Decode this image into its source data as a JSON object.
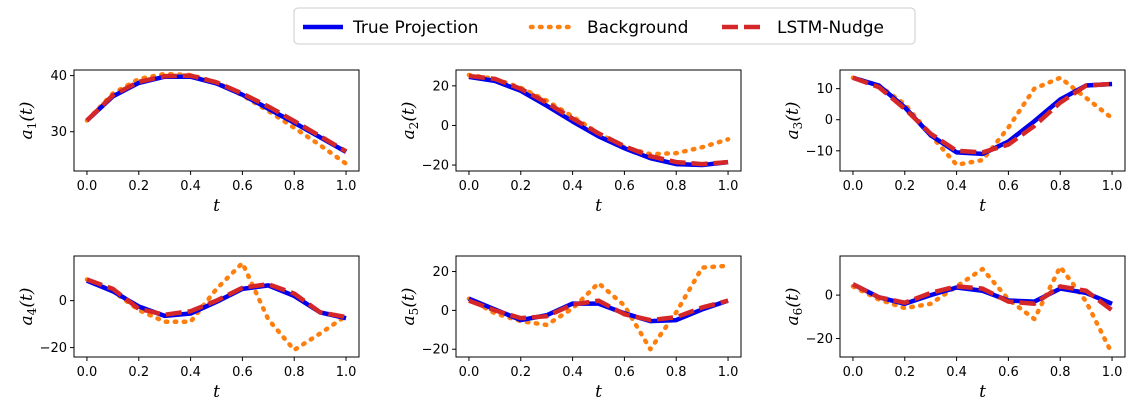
{
  "legend": {
    "entries": [
      {
        "label": "True Projection",
        "color": "#0000ee",
        "style": "solid"
      },
      {
        "label": "Background",
        "color": "#ff7f0e",
        "style": "dotted"
      },
      {
        "label": "LSTM-Nudge",
        "color": "#d62728",
        "style": "dashed"
      }
    ]
  },
  "chart_data": [
    {
      "type": "line",
      "title": "",
      "xlabel": "t",
      "ylabel_main": "a",
      "ylabel_sub": "1",
      "ylabel_suffix": "(t)",
      "xlim": [
        -0.05,
        1.05
      ],
      "ylim": [
        23,
        41
      ],
      "xticks": [
        0.0,
        0.2,
        0.4,
        0.6,
        0.8,
        1.0
      ],
      "yticks": [
        30,
        40
      ],
      "x": [
        0.0,
        0.1,
        0.2,
        0.3,
        0.4,
        0.5,
        0.6,
        0.7,
        0.8,
        0.9,
        1.0
      ],
      "series": [
        {
          "name": "True Projection",
          "values": [
            32,
            36.3,
            38.7,
            39.8,
            39.8,
            38.6,
            36.6,
            34.1,
            31.6,
            29,
            26.4
          ]
        },
        {
          "name": "Background",
          "values": [
            32,
            36.8,
            39.4,
            40.3,
            40.1,
            38.8,
            36.5,
            33.7,
            30.7,
            27.6,
            24.3
          ]
        },
        {
          "name": "LSTM-Nudge",
          "values": [
            32,
            36.5,
            38.9,
            39.9,
            40,
            38.8,
            36.8,
            34.5,
            31.9,
            29.2,
            26.5
          ]
        }
      ]
    },
    {
      "type": "line",
      "title": "",
      "xlabel": "t",
      "ylabel_main": "a",
      "ylabel_sub": "2",
      "ylabel_suffix": "(t)",
      "xlim": [
        -0.05,
        1.05
      ],
      "ylim": [
        -23,
        28
      ],
      "xticks": [
        0.0,
        0.2,
        0.4,
        0.6,
        0.8,
        1.0
      ],
      "yticks": [
        20,
        0,
        -20
      ],
      "x": [
        0.0,
        0.1,
        0.2,
        0.3,
        0.4,
        0.5,
        0.6,
        0.7,
        0.8,
        0.9,
        1.0
      ],
      "series": [
        {
          "name": "True Projection",
          "values": [
            24.5,
            22.5,
            17.5,
            10,
            2,
            -5.5,
            -11.5,
            -16.5,
            -19.5,
            -20,
            -18.5
          ]
        },
        {
          "name": "Background",
          "values": [
            25.5,
            23.5,
            19,
            12.5,
            4.5,
            -4,
            -11,
            -14.5,
            -14,
            -11,
            -7
          ]
        },
        {
          "name": "LSTM-Nudge",
          "values": [
            25,
            23.5,
            18.5,
            11.5,
            3.5,
            -4,
            -10.5,
            -15.5,
            -18.5,
            -19.5,
            -18.5
          ]
        }
      ]
    },
    {
      "type": "line",
      "title": "",
      "xlabel": "t",
      "ylabel_main": "a",
      "ylabel_sub": "3",
      "ylabel_suffix": "(t)",
      "xlim": [
        -0.05,
        1.05
      ],
      "ylim": [
        -16.5,
        16
      ],
      "xticks": [
        0.0,
        0.2,
        0.4,
        0.6,
        0.8,
        1.0
      ],
      "yticks": [
        10,
        0,
        -10
      ],
      "x": [
        0.0,
        0.1,
        0.2,
        0.3,
        0.4,
        0.5,
        0.6,
        0.7,
        0.8,
        0.9,
        1.0
      ],
      "series": [
        {
          "name": "True Projection",
          "values": [
            13.5,
            11,
            4,
            -5,
            -10.5,
            -11,
            -7,
            -0.5,
            6.5,
            11,
            11.5
          ]
        },
        {
          "name": "Background",
          "values": [
            13.5,
            11,
            5,
            -5,
            -14.5,
            -13,
            -2.5,
            10,
            13.5,
            7,
            0.5
          ]
        },
        {
          "name": "LSTM-Nudge",
          "values": [
            13.5,
            10.5,
            3.5,
            -4.5,
            -10,
            -10.5,
            -8,
            -2,
            5.5,
            11,
            11.5
          ]
        }
      ]
    },
    {
      "type": "line",
      "title": "",
      "xlabel": "t",
      "ylabel_main": "a",
      "ylabel_sub": "4",
      "ylabel_suffix": "(t)",
      "xlim": [
        -0.05,
        1.05
      ],
      "ylim": [
        -24,
        19
      ],
      "xticks": [
        0.0,
        0.2,
        0.4,
        0.6,
        0.8,
        1.0
      ],
      "yticks": [
        0,
        -20
      ],
      "x": [
        0.0,
        0.1,
        0.2,
        0.3,
        0.4,
        0.5,
        0.6,
        0.7,
        0.8,
        0.9,
        1.0
      ],
      "series": [
        {
          "name": "True Projection",
          "values": [
            8.5,
            4,
            -2.5,
            -6.5,
            -5.5,
            -0.5,
            5,
            6.5,
            2,
            -5,
            -7.5
          ]
        },
        {
          "name": "Background",
          "values": [
            9,
            4,
            -4,
            -9,
            -9,
            5,
            16,
            -8,
            -21,
            -14,
            -6.5
          ]
        },
        {
          "name": "LSTM-Nudge",
          "values": [
            9,
            5,
            -3.5,
            -6,
            -4.5,
            0,
            5.5,
            7,
            3,
            -5,
            -7
          ]
        }
      ]
    },
    {
      "type": "line",
      "title": "",
      "xlabel": "t",
      "ylabel_main": "a",
      "ylabel_sub": "5",
      "ylabel_suffix": "(t)",
      "xlim": [
        -0.05,
        1.05
      ],
      "ylim": [
        -24,
        28
      ],
      "xticks": [
        0.0,
        0.2,
        0.4,
        0.6,
        0.8,
        1.0
      ],
      "yticks": [
        20,
        0,
        -20
      ],
      "x": [
        0.0,
        0.1,
        0.2,
        0.3,
        0.4,
        0.5,
        0.6,
        0.7,
        0.8,
        0.9,
        1.0
      ],
      "series": [
        {
          "name": "True Projection",
          "values": [
            6,
            0.5,
            -5,
            -2.5,
            3.5,
            3.5,
            -1.5,
            -5.5,
            -5,
            0.5,
            5
          ]
        },
        {
          "name": "Background",
          "values": [
            6,
            -1.5,
            -5.5,
            -7.5,
            1,
            14,
            2.5,
            -20,
            -1,
            22,
            23
          ]
        },
        {
          "name": "LSTM-Nudge",
          "values": [
            5,
            0,
            -4,
            -3,
            3,
            5,
            -2,
            -5,
            -3.5,
            1.5,
            5
          ]
        }
      ]
    },
    {
      "type": "line",
      "title": "",
      "xlabel": "t",
      "ylabel_main": "a",
      "ylabel_sub": "6",
      "ylabel_suffix": "(t)",
      "xlim": [
        -0.05,
        1.05
      ],
      "ylim": [
        -28.5,
        18
      ],
      "xticks": [
        0.0,
        0.2,
        0.4,
        0.6,
        0.8,
        1.0
      ],
      "yticks": [
        0,
        -20
      ],
      "x": [
        0.0,
        0.1,
        0.2,
        0.3,
        0.4,
        0.5,
        0.6,
        0.7,
        0.8,
        0.9,
        1.0
      ],
      "series": [
        {
          "name": "True Projection",
          "values": [
            5,
            -1,
            -4,
            0,
            3.5,
            2,
            -2.5,
            -3,
            3,
            1,
            -4
          ]
        },
        {
          "name": "Background",
          "values": [
            4,
            -2,
            -6,
            -4,
            4,
            12,
            -2,
            -11,
            13,
            -3,
            -27
          ]
        },
        {
          "name": "LSTM-Nudge",
          "values": [
            5,
            -1,
            -3.5,
            1,
            4,
            3,
            -3,
            -4,
            4,
            2,
            -7
          ]
        }
      ]
    }
  ]
}
